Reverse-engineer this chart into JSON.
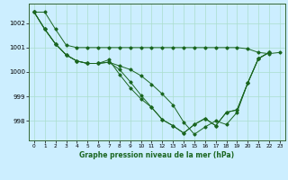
{
  "title": "Graphe pression niveau de la mer (hPa)",
  "bg_color": "#cceeff",
  "grid_color": "#aaddcc",
  "line_color": "#1a6620",
  "marker_color": "#1a6620",
  "x_ticks": [
    0,
    1,
    2,
    3,
    4,
    5,
    6,
    7,
    8,
    9,
    10,
    11,
    12,
    13,
    14,
    15,
    16,
    17,
    18,
    19,
    20,
    21,
    22,
    23
  ],
  "y_ticks": [
    998,
    999,
    1000,
    1001,
    1002
  ],
  "ylim": [
    997.2,
    1002.8
  ],
  "xlim": [
    -0.5,
    23.5
  ],
  "line1_x": [
    0,
    1,
    2,
    3,
    4,
    5,
    6,
    7,
    8,
    9,
    10,
    11,
    12,
    13,
    14,
    15,
    16,
    17,
    18,
    19,
    20,
    21,
    22,
    23
  ],
  "line1_y": [
    1002.45,
    1002.45,
    1001.75,
    1001.1,
    1001.0,
    1001.0,
    1001.0,
    1001.0,
    1001.0,
    1001.0,
    1001.0,
    1001.0,
    1001.0,
    1001.0,
    1001.0,
    1001.0,
    1001.0,
    1001.0,
    1001.0,
    1001.0,
    1000.95,
    1000.8,
    1000.75,
    1000.8
  ],
  "line2_x": [
    0,
    1,
    2,
    3,
    4,
    5,
    6,
    7,
    8,
    9,
    10,
    11,
    12,
    13,
    14,
    15,
    16,
    17,
    18,
    19,
    20,
    21,
    22
  ],
  "line2_y": [
    1002.45,
    1001.75,
    1001.15,
    1000.7,
    1000.45,
    1000.35,
    1000.35,
    1000.4,
    1000.25,
    1000.1,
    999.85,
    999.5,
    999.1,
    998.65,
    997.95,
    997.45,
    997.75,
    998.0,
    997.85,
    998.35,
    999.55,
    1000.55,
    1000.8
  ],
  "line3_x": [
    0,
    1,
    2,
    3,
    4,
    5,
    6,
    7,
    8,
    9,
    10,
    11,
    12,
    13,
    14,
    15,
    16,
    17,
    18,
    19,
    20,
    21,
    22
  ],
  "line3_y": [
    1002.45,
    1001.75,
    1001.15,
    1000.7,
    1000.45,
    1000.35,
    1000.35,
    1000.4,
    1000.1,
    999.6,
    999.05,
    998.55,
    998.05,
    997.8,
    997.5,
    997.85,
    998.1,
    997.8,
    998.35,
    998.45,
    999.55,
    1000.55,
    1000.8
  ],
  "line4_x": [
    0,
    1,
    2,
    3,
    4,
    5,
    6,
    7,
    8,
    9,
    10,
    11,
    12,
    13,
    14,
    15,
    16,
    17,
    18,
    19,
    20,
    21,
    22
  ],
  "line4_y": [
    1002.45,
    1001.75,
    1001.15,
    1000.7,
    1000.45,
    1000.35,
    1000.35,
    1000.5,
    999.9,
    999.35,
    998.9,
    998.55,
    998.05,
    997.8,
    997.5,
    997.85,
    998.1,
    997.8,
    998.35,
    998.45,
    999.55,
    1000.55,
    1000.8
  ]
}
